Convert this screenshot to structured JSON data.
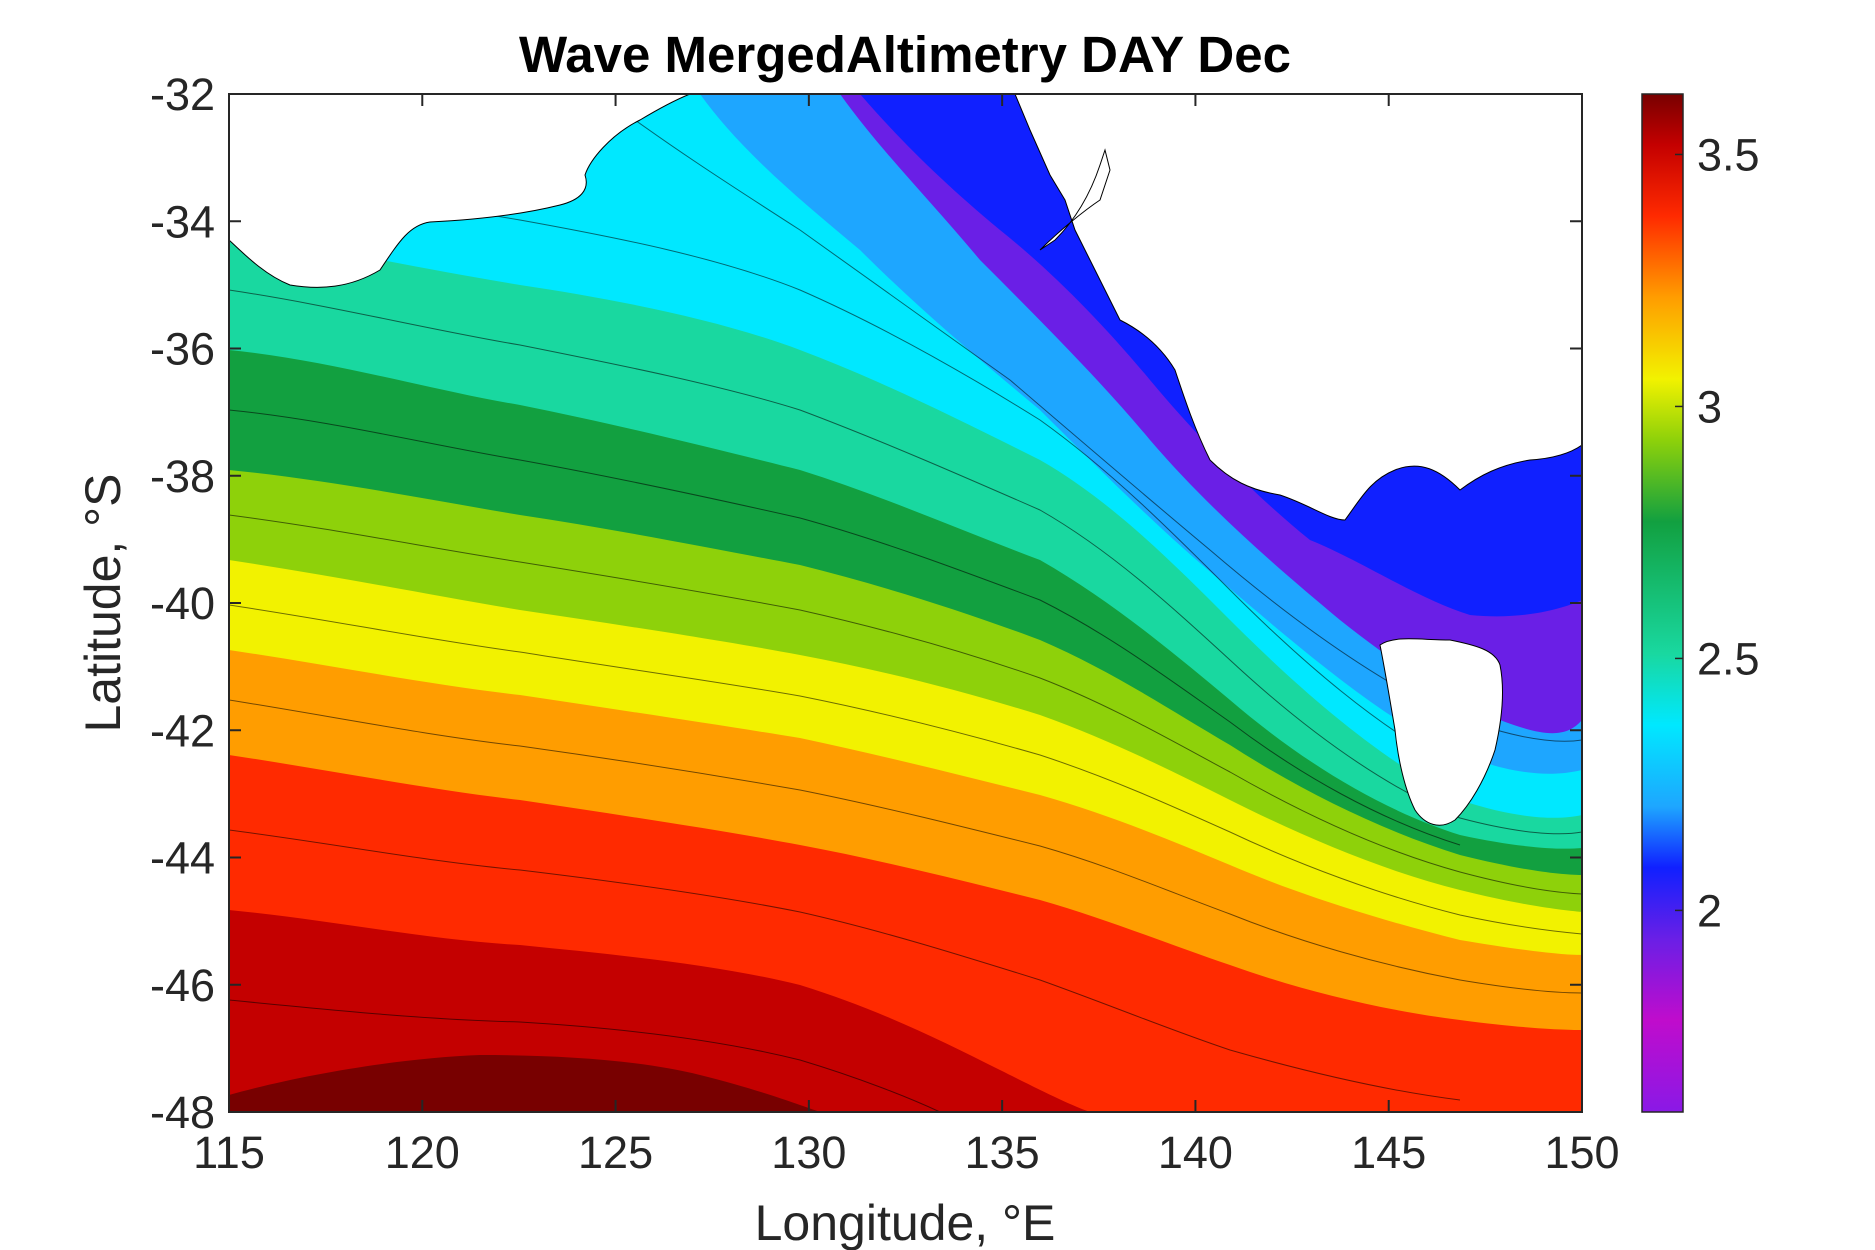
{
  "chart_data": {
    "type": "heatmap",
    "title": "Wave MergedAltimetry DAY Dec",
    "xlabel": "Longitude, °E",
    "ylabel": "Latitude, °S",
    "xlim": [
      115,
      150
    ],
    "ylim": [
      -48,
      -32
    ],
    "xticks": [
      115,
      120,
      125,
      130,
      135,
      140,
      145,
      150
    ],
    "yticks": [
      -32,
      -34,
      -36,
      -38,
      -40,
      -42,
      -44,
      -46,
      -48
    ],
    "colorbar": {
      "ticks": [
        2,
        2.5,
        3,
        3.5
      ],
      "range": [
        1.6,
        3.62
      ],
      "colormap": [
        "#8a19e6",
        "#c00ccc",
        "#6a1fe6",
        "#1020ff",
        "#1ea6ff",
        "#00e8ff",
        "#19d8a0",
        "#12a040",
        "#8ed10a",
        "#f2f200",
        "#ff9d00",
        "#ff2a00",
        "#c40000",
        "#780000"
      ]
    },
    "field_description_contours": [
      {
        "value": 3.55,
        "lat_at_lon": [
          [
            115,
            -47.7
          ],
          [
            124,
            -47.2
          ],
          [
            130,
            -48
          ]
        ]
      },
      {
        "value": 3.4,
        "lat_at_lon": [
          [
            115,
            -45.6
          ],
          [
            125,
            -45.9
          ],
          [
            132,
            -47.6
          ],
          [
            140,
            -48
          ]
        ]
      },
      {
        "value": 3.2,
        "lat_at_lon": [
          [
            115,
            -43.5
          ],
          [
            125,
            -44.3
          ],
          [
            135,
            -46.2
          ],
          [
            150,
            -47.2
          ]
        ]
      },
      {
        "value": 3.0,
        "lat_at_lon": [
          [
            115,
            -40.3
          ],
          [
            125,
            -41.4
          ],
          [
            135,
            -42.6
          ],
          [
            145,
            -44.6
          ],
          [
            150,
            -45.4
          ]
        ]
      },
      {
        "value": 2.75,
        "lat_at_lon": [
          [
            115,
            -37.2
          ],
          [
            125,
            -38.0
          ],
          [
            135,
            -40.0
          ],
          [
            140,
            -41.5
          ],
          [
            145,
            -43.4
          ],
          [
            150,
            -43.8
          ]
        ]
      },
      {
        "value": 2.5,
        "lat_at_lon": [
          [
            115,
            -35.0
          ],
          [
            125,
            -35.2
          ],
          [
            135,
            -37.0
          ],
          [
            140,
            -39.3
          ],
          [
            145,
            -42.6
          ],
          [
            150,
            -42.0
          ]
        ]
      },
      {
        "value": 2.2,
        "lat_at_lon": [
          [
            125,
            -33.0
          ],
          [
            133,
            -34.0
          ],
          [
            138,
            -36.2
          ],
          [
            143,
            -39.0
          ],
          [
            147,
            -41.5
          ],
          [
            150,
            -40.2
          ]
        ]
      },
      {
        "value": 1.9,
        "lat_at_lon": [
          [
            145,
            -39.0
          ],
          [
            148,
            -39.4
          ],
          [
            150,
            -38.0
          ]
        ]
      }
    ]
  }
}
